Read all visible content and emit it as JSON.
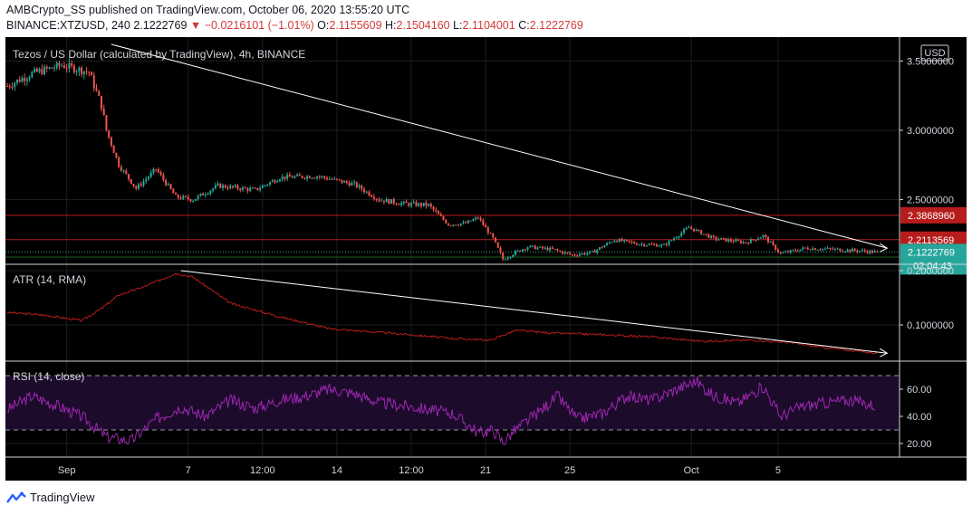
{
  "header": {
    "publisher_line": "AMBCrypto_SS published on TradingView.com, October 06, 2020 13:55:20 UTC",
    "symbol_prefix": "BINANCE:XTZUSD, 240",
    "last_price": "2.1222769",
    "change": "▼ −0.0216101 (−1.01%)",
    "o_label": "O:",
    "o_value": "2.1155609",
    "h_label": "H:",
    "h_value": "2.1504160",
    "l_label": "L:",
    "l_value": "2.1104001",
    "c_label": "C:",
    "c_value": "2.1222769"
  },
  "footer": {
    "brand": "TradingView"
  },
  "colors": {
    "background": "#000000",
    "up_candle": "#26a69a",
    "down_candle": "#ef5350",
    "resistance": "#b71c1c",
    "support": "#1b5e20",
    "trendline": "#ffffff",
    "atr_line": "#b71c1c",
    "rsi_line": "#9c27b0",
    "rsi_band": "#1c0b2b"
  },
  "chart_data": [
    {
      "type": "candlestick",
      "title": "Tezos / US Dollar (calculated by TradingView), 4h, BINANCE",
      "currency_badge": "USD",
      "x_tick_labels": [
        "Sep",
        "7",
        "12:00",
        "14",
        "12:00",
        "21",
        "25",
        "Oct",
        "5"
      ],
      "y_ticks": [
        3.5,
        3.0,
        2.5
      ],
      "y_tick_labels": [
        "3.5000000",
        "3.0000000",
        "2.5000000"
      ],
      "ylim": [
        2.04,
        3.62
      ],
      "close_path": [
        {
          "x": 0,
          "y": 3.32
        },
        {
          "x": 10,
          "y": 3.41
        },
        {
          "x": 22,
          "y": 3.47
        },
        {
          "x": 33,
          "y": 3.42
        },
        {
          "x": 38,
          "y": 3.18
        },
        {
          "x": 40,
          "y": 3.0
        },
        {
          "x": 45,
          "y": 2.75
        },
        {
          "x": 52,
          "y": 2.58
        },
        {
          "x": 60,
          "y": 2.72
        },
        {
          "x": 68,
          "y": 2.52
        },
        {
          "x": 75,
          "y": 2.5
        },
        {
          "x": 85,
          "y": 2.6
        },
        {
          "x": 100,
          "y": 2.57
        },
        {
          "x": 110,
          "y": 2.66
        },
        {
          "x": 125,
          "y": 2.67
        },
        {
          "x": 140,
          "y": 2.61
        },
        {
          "x": 150,
          "y": 2.5
        },
        {
          "x": 160,
          "y": 2.47
        },
        {
          "x": 170,
          "y": 2.46
        },
        {
          "x": 178,
          "y": 2.32
        },
        {
          "x": 185,
          "y": 2.33
        },
        {
          "x": 190,
          "y": 2.37
        },
        {
          "x": 196,
          "y": 2.22
        },
        {
          "x": 200,
          "y": 2.07
        },
        {
          "x": 205,
          "y": 2.12
        },
        {
          "x": 210,
          "y": 2.16
        },
        {
          "x": 220,
          "y": 2.14
        },
        {
          "x": 228,
          "y": 2.1
        },
        {
          "x": 236,
          "y": 2.12
        },
        {
          "x": 245,
          "y": 2.21
        },
        {
          "x": 255,
          "y": 2.18
        },
        {
          "x": 265,
          "y": 2.17
        },
        {
          "x": 275,
          "y": 2.3
        },
        {
          "x": 285,
          "y": 2.22
        },
        {
          "x": 298,
          "y": 2.19
        },
        {
          "x": 305,
          "y": 2.24
        },
        {
          "x": 312,
          "y": 2.11
        },
        {
          "x": 322,
          "y": 2.15
        },
        {
          "x": 335,
          "y": 2.14
        },
        {
          "x": 345,
          "y": 2.13
        },
        {
          "x": 351,
          "y": 2.12
        }
      ],
      "resistance_levels": [
        {
          "value": 2.386896,
          "label": "2.3868960"
        },
        {
          "value": 2.2113569,
          "label": "2.2113569"
        }
      ],
      "current_price": {
        "value": 2.1222769,
        "label": "2.1222769",
        "countdown": "02:04:43"
      },
      "support_level": {
        "value": 2.0860036,
        "label": "2.0860036"
      },
      "trendline": [
        {
          "x": 42,
          "y": 3.62
        },
        {
          "x": 355,
          "y": 2.15
        }
      ]
    },
    {
      "type": "line",
      "title": "ATR (14, RMA)",
      "y_ticks": [
        0.2,
        0.1
      ],
      "y_tick_labels": [
        "0.2000000",
        "0.1000000"
      ],
      "ylim": [
        0.035,
        0.21
      ],
      "path": [
        {
          "x": 0,
          "y": 0.123
        },
        {
          "x": 15,
          "y": 0.118
        },
        {
          "x": 30,
          "y": 0.108
        },
        {
          "x": 38,
          "y": 0.13
        },
        {
          "x": 45,
          "y": 0.155
        },
        {
          "x": 55,
          "y": 0.17
        },
        {
          "x": 68,
          "y": 0.195
        },
        {
          "x": 75,
          "y": 0.188
        },
        {
          "x": 90,
          "y": 0.14
        },
        {
          "x": 110,
          "y": 0.115
        },
        {
          "x": 130,
          "y": 0.093
        },
        {
          "x": 160,
          "y": 0.083
        },
        {
          "x": 180,
          "y": 0.075
        },
        {
          "x": 195,
          "y": 0.072
        },
        {
          "x": 205,
          "y": 0.09
        },
        {
          "x": 220,
          "y": 0.085
        },
        {
          "x": 240,
          "y": 0.082
        },
        {
          "x": 260,
          "y": 0.078
        },
        {
          "x": 280,
          "y": 0.07
        },
        {
          "x": 300,
          "y": 0.072
        },
        {
          "x": 315,
          "y": 0.068
        },
        {
          "x": 330,
          "y": 0.058
        },
        {
          "x": 351,
          "y": 0.048
        }
      ],
      "trendline": [
        {
          "x": 70,
          "y": 0.2
        },
        {
          "x": 355,
          "y": 0.048
        }
      ]
    },
    {
      "type": "line",
      "title": "RSI (14, close)",
      "y_ticks": [
        60,
        40,
        20
      ],
      "y_tick_labels": [
        "60.00",
        "40.00",
        "20.00"
      ],
      "ylim": [
        10,
        80
      ],
      "band": [
        30,
        70
      ],
      "path": [
        {
          "x": 0,
          "y": 45
        },
        {
          "x": 10,
          "y": 55
        },
        {
          "x": 20,
          "y": 48
        },
        {
          "x": 30,
          "y": 40
        },
        {
          "x": 40,
          "y": 25
        },
        {
          "x": 50,
          "y": 22
        },
        {
          "x": 60,
          "y": 38
        },
        {
          "x": 70,
          "y": 47
        },
        {
          "x": 80,
          "y": 40
        },
        {
          "x": 90,
          "y": 52
        },
        {
          "x": 100,
          "y": 46
        },
        {
          "x": 110,
          "y": 52
        },
        {
          "x": 120,
          "y": 55
        },
        {
          "x": 130,
          "y": 60
        },
        {
          "x": 140,
          "y": 57
        },
        {
          "x": 150,
          "y": 50
        },
        {
          "x": 160,
          "y": 48
        },
        {
          "x": 170,
          "y": 45
        },
        {
          "x": 180,
          "y": 42
        },
        {
          "x": 190,
          "y": 28
        },
        {
          "x": 196,
          "y": 30
        },
        {
          "x": 200,
          "y": 21
        },
        {
          "x": 205,
          "y": 30
        },
        {
          "x": 215,
          "y": 44
        },
        {
          "x": 222,
          "y": 55
        },
        {
          "x": 230,
          "y": 38
        },
        {
          "x": 240,
          "y": 42
        },
        {
          "x": 250,
          "y": 55
        },
        {
          "x": 260,
          "y": 52
        },
        {
          "x": 270,
          "y": 60
        },
        {
          "x": 278,
          "y": 66
        },
        {
          "x": 285,
          "y": 55
        },
        {
          "x": 295,
          "y": 50
        },
        {
          "x": 305,
          "y": 62
        },
        {
          "x": 312,
          "y": 40
        },
        {
          "x": 320,
          "y": 47
        },
        {
          "x": 330,
          "y": 50
        },
        {
          "x": 340,
          "y": 52
        },
        {
          "x": 350,
          "y": 48
        }
      ]
    }
  ]
}
